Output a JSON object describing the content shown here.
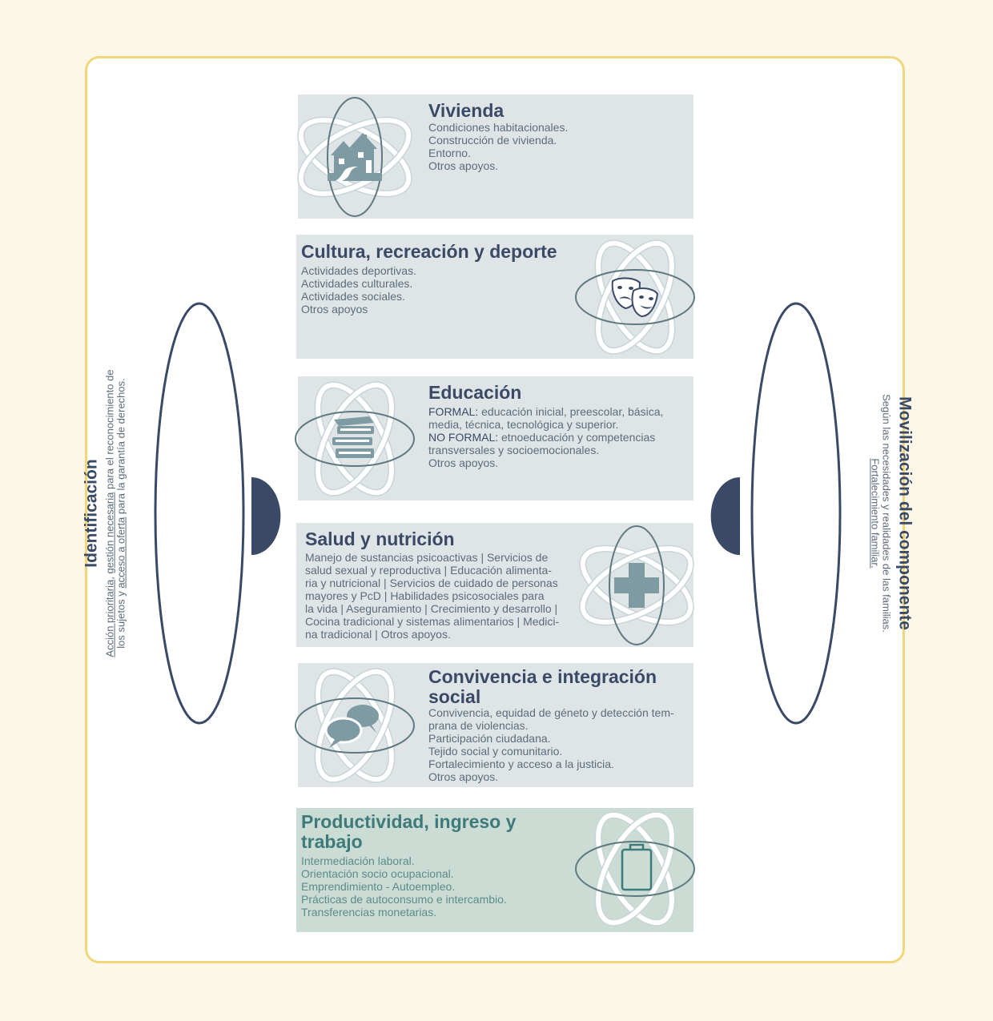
{
  "sections": {
    "vivienda": {
      "title": "Vivienda",
      "items": [
        "Condiciones habitacionales.",
        "Construcción de vivienda.",
        "Entorno.",
        "Otros apoyos."
      ]
    },
    "cultura": {
      "title": "Cultura, recreación y deporte",
      "items": [
        "Actividades deportivas.",
        "Actividades culturales.",
        "Actividades sociales.",
        "Otros apoyos"
      ]
    },
    "educacion": {
      "title": "Educación",
      "formal_label": "FORMAL:",
      "formal_line1": " educación inicial, preescolar, básica,",
      "formal_line2": "media, técnica, tecnológica y superior.",
      "noformal_label": "NO FORMAL:",
      "noformal_line1": " etnoeducación y competencias",
      "noformal_line2": "transversales y socioemocionales.",
      "other": "Otros apoyos."
    },
    "salud": {
      "title": "Salud y nutrición",
      "lines": [
        "Manejo de sustancias psicoactivas | Servicios de",
        "salud sexual y reproductiva | Educación alimenta-",
        "ria y nutricional | Servicios de cuidado de personas",
        "mayores y PcD | Habilidades psicosociales para",
        "la vida | Aseguramiento | Crecimiento y desarrollo |",
        "Cocina tradicional y sistemas alimentarios | Medici-",
        "na tradicional | Otros apoyos."
      ]
    },
    "convivencia": {
      "title_line1": "Convivencia e integración",
      "title_line2": "social",
      "lines": [
        "Convivencia, equidad de géneto y detección tem-",
        "prana de violencias.",
        "Participación ciudadana.",
        "Tejido social y comunitario.",
        "Fortalecimiento y acceso a la justicia.",
        "Otros apoyos."
      ]
    },
    "productividad": {
      "title_line1": "Productividad, ingreso y",
      "title_line2": "trabajo",
      "items": [
        "Intermediación laboral.",
        "Orientación socio ocupacional.",
        "Emprendimiento - Autoempleo.",
        "Prácticas de autoconsumo e intercambio.",
        "Transferencias monetarias."
      ]
    }
  },
  "left": {
    "title": "Identificación",
    "line1_u1": "Acción prioritaria",
    "line1_t1": ", ",
    "line1_u2": "gestión necesaria",
    "line1_t2": " para el reconocimiento de",
    "line2_t1": "los sujetos y ",
    "line2_u1": "acceso a oferta",
    "line2_t2": " para la garantía de derechos."
  },
  "right": {
    "title": "Movilización del componente",
    "line1": "Según las necesidades y realidades de las familias.",
    "line2_u": "Fortalecimiento familiar."
  },
  "colors": {
    "navy": "#3a4a66",
    "panel": "#dfe5e7",
    "panel_green": "#cadcd4",
    "orbit": "#c8d4d8",
    "orbit_dark": "#5e7a80",
    "icon": "#7e9aa2",
    "border": "#f2d77a",
    "background": "#fdf7e8"
  },
  "icons": [
    "houses-icon",
    "theater-masks-icon",
    "books-icon",
    "medical-cross-icon",
    "speech-bubbles-icon",
    "clipboard-icon"
  ]
}
